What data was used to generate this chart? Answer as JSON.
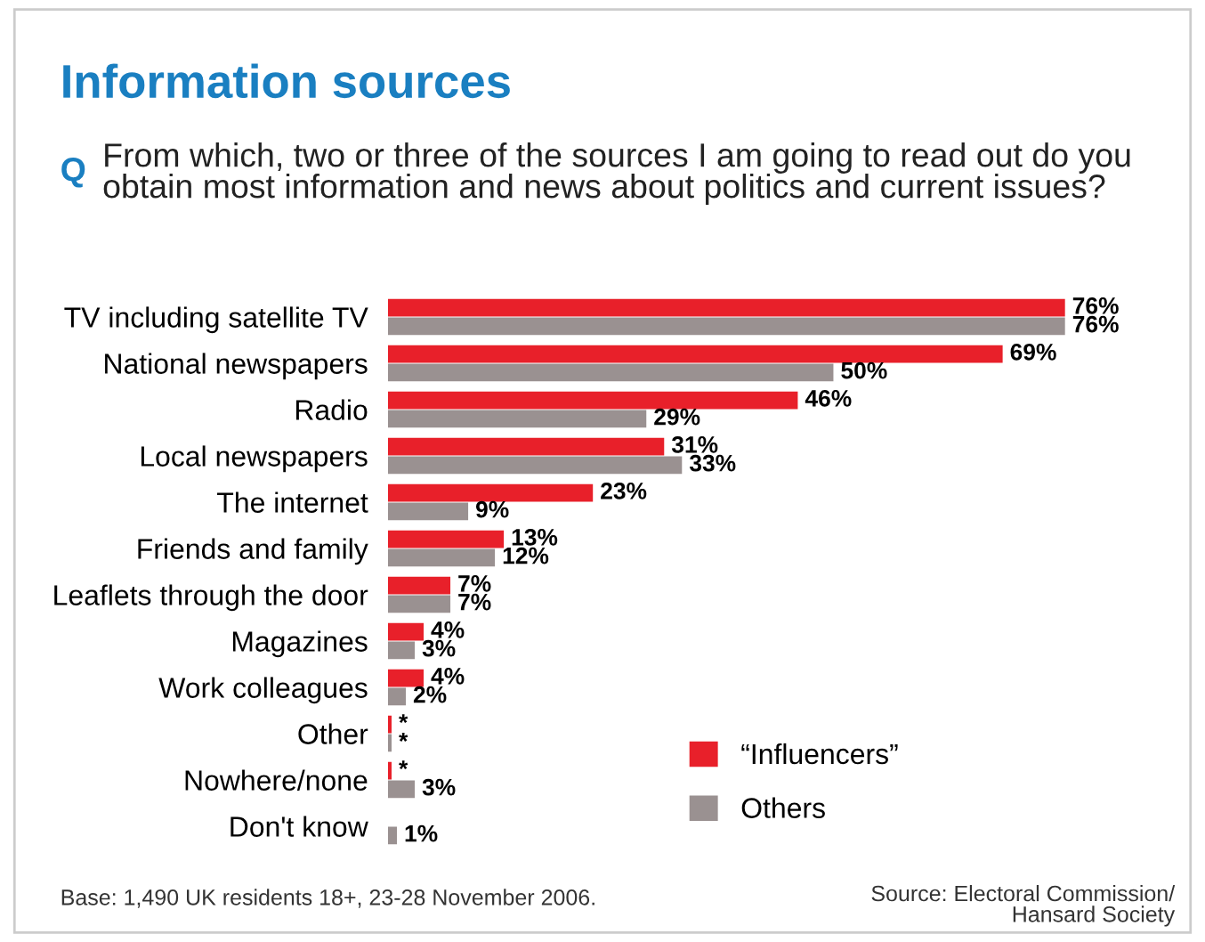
{
  "chart_data": {
    "type": "bar",
    "orientation": "horizontal",
    "title": "Information sources",
    "subtitle": "Q From which, two or three of the sources I am going to read out do you obtain most information and news about politics and current issues?",
    "categories": [
      "TV including satellite TV",
      "National newspapers",
      "Radio",
      "Local newspapers",
      "The internet",
      "Friends and family",
      "Leaflets through the door",
      "Magazines",
      "Work colleagues",
      "Other",
      "Nowhere/none",
      "Don't know"
    ],
    "series": [
      {
        "name": "“Influencers”",
        "color": "#e8202a",
        "values": [
          76,
          69,
          46,
          31,
          23,
          13,
          7,
          4,
          4,
          0.4,
          0.4,
          null
        ],
        "value_labels": [
          "76%",
          "69%",
          "46%",
          "31%",
          "23%",
          "13%",
          "7%",
          "4%",
          "4%",
          "*",
          "*",
          null
        ]
      },
      {
        "name": "Others",
        "color": "#9a9191",
        "values": [
          76,
          50,
          29,
          33,
          9,
          12,
          7,
          3,
          2,
          0.4,
          3,
          1
        ],
        "value_labels": [
          "76%",
          "50%",
          "29%",
          "33%",
          "9%",
          "12%",
          "7%",
          "3%",
          "2%",
          "*",
          "3%",
          "1%"
        ]
      }
    ],
    "legend": "bottom right",
    "grid": false,
    "tick_labels": "y",
    "annotations": [
      "Base: 1,490 UK residents 18+, 23-28 November 2006.",
      "Source: Electoral Commission/\nHansard Society"
    ]
  }
}
